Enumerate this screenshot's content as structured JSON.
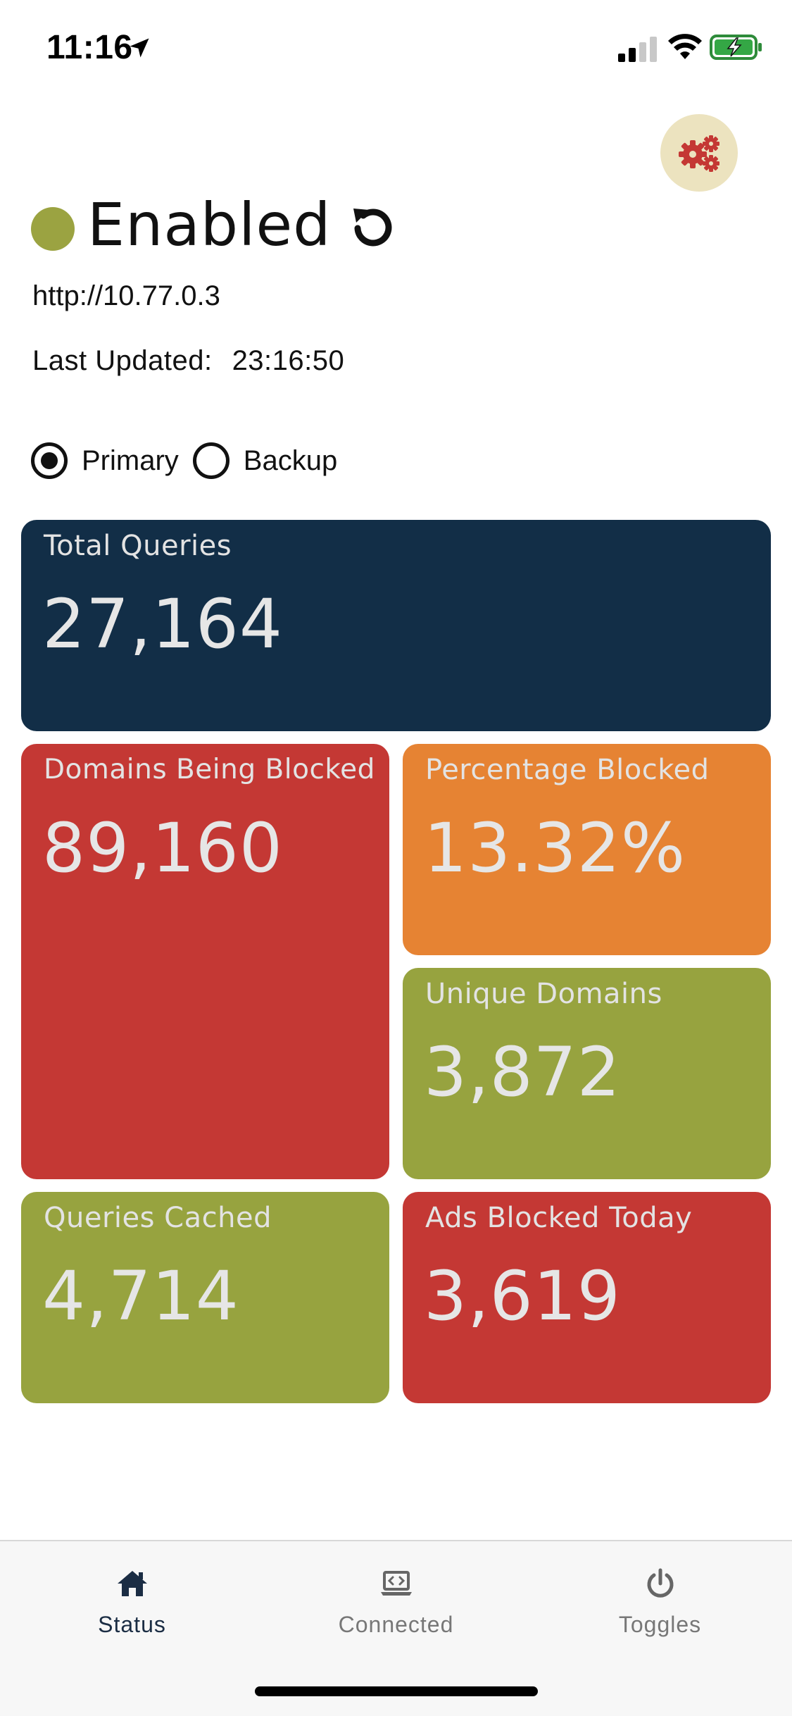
{
  "status_bar": {
    "time": "11:16",
    "icons": [
      "location-arrow-icon",
      "cellular-signal-icon",
      "wifi-icon",
      "battery-charging-icon"
    ]
  },
  "header": {
    "settings_icon": "gears-icon",
    "status": "Enabled",
    "status_color": "#9ba341",
    "refresh_icon": "refresh-icon",
    "url": "http://10.77.0.3",
    "last_updated_label": "Last Updated:",
    "last_updated_value": "23:16:50"
  },
  "server_select": {
    "options": [
      {
        "label": "Primary",
        "selected": true
      },
      {
        "label": "Backup",
        "selected": false
      }
    ]
  },
  "tiles": {
    "total_queries": {
      "label": "Total Queries",
      "value": "27,164",
      "color": "#122e47"
    },
    "domains_blocked": {
      "label": "Domains Being Blocked",
      "value": "89,160",
      "color": "#c43834"
    },
    "percentage_blocked": {
      "label": "Percentage Blocked",
      "value": "13.32%",
      "color": "#e68333"
    },
    "unique_domains": {
      "label": "Unique Domains",
      "value": "3,872",
      "color": "#97a33f"
    },
    "queries_cached": {
      "label": "Queries Cached",
      "value": "4,714",
      "color": "#97a33f"
    },
    "ads_blocked_today": {
      "label": "Ads Blocked Today",
      "value": "3,619",
      "color": "#c43834"
    }
  },
  "nav": {
    "items": [
      {
        "label": "Status",
        "icon": "home-icon",
        "active": true
      },
      {
        "label": "Connected",
        "icon": "laptop-code-icon",
        "active": false
      },
      {
        "label": "Toggles",
        "icon": "power-icon",
        "active": false
      }
    ]
  }
}
